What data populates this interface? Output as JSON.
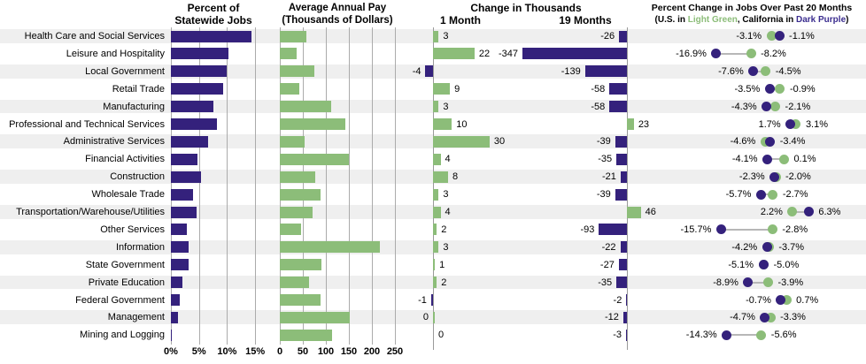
{
  "header": {
    "panel1": [
      "Percent of",
      "Statewide Jobs"
    ],
    "panel2": [
      "Average Annual Pay",
      "(Thousands of Dollars)"
    ],
    "panel3": {
      "title": "Change in Thousands",
      "col1": "1 Month",
      "col2": "19 Months"
    },
    "panel4": {
      "title": "Percent Change in Jobs Over Past 20 Months",
      "subtitle_parts": [
        "(U.S. in ",
        "Light Green",
        ", California in ",
        "Dark Purple",
        ")"
      ]
    }
  },
  "axis": {
    "panel1_ticks": [
      "0%",
      "5%",
      "10%",
      "15%"
    ],
    "panel2_ticks": [
      "0",
      "50",
      "100",
      "150",
      "200",
      "250"
    ]
  },
  "colors": {
    "california_purple": "#34217C",
    "us_green": "#8CBD79",
    "stripe_gray": "#EFEFEF",
    "gridline_gray": "#ABABAB",
    "baseline_gray": "#9A9A9A",
    "text_black": "#000000",
    "subtitle_green_word": "#8CBD79",
    "subtitle_purple_word": "#3B2D8F"
  },
  "chart_data": {
    "type": "bar",
    "categories": [
      "Health Care and Social Services",
      "Leisure and Hospitality",
      "Local Government",
      "Retail Trade",
      "Manufacturing",
      "Professional and Technical Services",
      "Administrative Services",
      "Financial Activities",
      "Construction",
      "Wholesale Trade",
      "Transportation/Warehouse/Utilities",
      "Other Services",
      "Information",
      "State Government",
      "Private Education",
      "Federal Government",
      "Management",
      "Mining and Logging"
    ],
    "series": [
      {
        "name": "Percent of Statewide Jobs",
        "unit": "%",
        "xlim": [
          0,
          17
        ],
        "grid_step": 5,
        "values": [
          14.4,
          10.2,
          10.0,
          9.3,
          7.5,
          8.2,
          6.6,
          4.8,
          5.3,
          3.9,
          4.6,
          2.9,
          3.2,
          3.1,
          2.1,
          1.6,
          1.3,
          0.1
        ]
      },
      {
        "name": "Average Annual Pay (Thousands of Dollars)",
        "xlim": [
          0,
          270
        ],
        "grid_step": 50,
        "values": [
          57,
          36,
          75,
          43,
          111,
          142,
          53,
          150,
          77,
          88,
          71,
          47,
          218,
          90,
          64,
          88,
          152,
          113
        ]
      },
      {
        "name": "Change in Thousands - 1 Month",
        "values": [
          3,
          22,
          -4,
          9,
          3,
          10,
          30,
          4,
          8,
          3,
          4,
          2,
          3,
          1,
          2,
          -1,
          0,
          0
        ]
      },
      {
        "name": "Change in Thousands - 19 Months",
        "values": [
          -26,
          -347,
          -139,
          -58,
          -58,
          23,
          -39,
          -35,
          -21,
          -39,
          46,
          -93,
          -22,
          -27,
          -35,
          -2,
          -12,
          -3
        ]
      },
      {
        "name": "Percent Change in Jobs Over Past 20 Months - U.S.",
        "unit": "%",
        "values": [
          -3.1,
          -8.2,
          -4.5,
          -0.9,
          -2.1,
          3.1,
          -4.6,
          0.1,
          -2.0,
          -2.7,
          2.2,
          -2.8,
          -3.7,
          -5.0,
          -3.9,
          0.7,
          -3.3,
          -5.6
        ]
      },
      {
        "name": "Percent Change in Jobs Over Past 20 Months - California",
        "unit": "%",
        "values": [
          -1.1,
          -16.9,
          -7.6,
          -3.5,
          -4.3,
          1.7,
          -3.4,
          -4.1,
          -2.3,
          -5.7,
          6.3,
          -15.7,
          -4.2,
          -5.1,
          -8.9,
          -0.7,
          -4.7,
          -14.3
        ]
      }
    ],
    "zero_label_side_1month": {
      "16": "left",
      "17": "right"
    },
    "legend": {
      "us": "Light Green",
      "california": "Dark Purple"
    },
    "layout": {
      "grid": "vertical gridlines in panels 1-2",
      "stripes": "alternating gray row bands"
    }
  }
}
